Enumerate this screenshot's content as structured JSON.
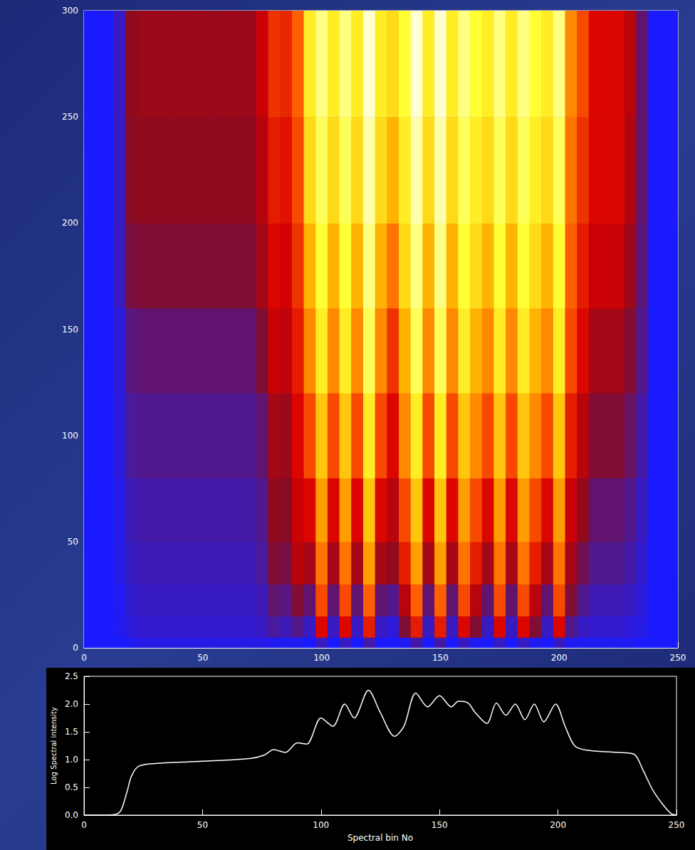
{
  "chart_data": [
    {
      "type": "heatmap",
      "xlim": [
        0,
        250
      ],
      "xticks": [
        0,
        50,
        100,
        150,
        200,
        250
      ],
      "ylim": [
        0,
        300
      ],
      "yticks": [
        0,
        50,
        100,
        150,
        200,
        250,
        300
      ],
      "x_edges": [
        0,
        2.5,
        7.5,
        12.5,
        17.5,
        22.5,
        27.5,
        32.5,
        37.5,
        42.5,
        47.5,
        52.5,
        57.5,
        62.5,
        67.5,
        72.5,
        77.5,
        82.5,
        87.5,
        92.5,
        97.5,
        102.5,
        107.5,
        112.5,
        117.5,
        122.5,
        127.5,
        132.5,
        137.5,
        142.5,
        147.5,
        152.5,
        157.5,
        162.5,
        167.5,
        172.5,
        177.5,
        182.5,
        187.5,
        192.5,
        197.5,
        202.5,
        207.5,
        212.5,
        217.5,
        222.5,
        227.5,
        232.5,
        237.5,
        242.5,
        247.5,
        250
      ],
      "y_edges": [
        0,
        5,
        15,
        30,
        50,
        80,
        120,
        160,
        200,
        250,
        300
      ],
      "cells": [
        [
          0.05,
          0.05,
          0.05,
          0.05,
          0.05,
          0.05,
          0.05,
          0.05,
          0.05,
          0.05
        ],
        [
          0.05,
          0.05,
          0.05,
          0.05,
          0.05,
          0.05,
          0.05,
          0.05,
          0.05,
          0.05
        ],
        [
          0.05,
          0.05,
          0.05,
          0.05,
          0.05,
          0.05,
          0.05,
          0.05,
          0.05,
          0.05
        ],
        [
          0.05,
          0.1,
          0.1,
          0.15,
          0.15,
          0.2,
          0.2,
          0.3,
          0.3,
          0.3
        ],
        [
          0.1,
          0.2,
          0.25,
          0.3,
          0.35,
          0.45,
          0.55,
          0.75,
          0.85,
          0.9
        ],
        [
          0.15,
          0.25,
          0.3,
          0.35,
          0.4,
          0.5,
          0.6,
          0.8,
          0.9,
          0.95
        ],
        [
          0.15,
          0.25,
          0.3,
          0.35,
          0.4,
          0.5,
          0.6,
          0.8,
          0.9,
          0.95
        ],
        [
          0.15,
          0.25,
          0.3,
          0.35,
          0.4,
          0.5,
          0.6,
          0.8,
          0.9,
          0.95
        ],
        [
          0.15,
          0.25,
          0.3,
          0.35,
          0.4,
          0.5,
          0.6,
          0.8,
          0.9,
          0.95
        ],
        [
          0.15,
          0.25,
          0.3,
          0.35,
          0.4,
          0.5,
          0.6,
          0.8,
          0.9,
          0.95
        ],
        [
          0.15,
          0.25,
          0.3,
          0.35,
          0.4,
          0.5,
          0.6,
          0.8,
          0.9,
          0.95
        ],
        [
          0.15,
          0.25,
          0.3,
          0.35,
          0.4,
          0.5,
          0.6,
          0.8,
          0.9,
          0.95
        ],
        [
          0.15,
          0.25,
          0.3,
          0.35,
          0.4,
          0.5,
          0.6,
          0.8,
          0.9,
          0.95
        ],
        [
          0.15,
          0.25,
          0.3,
          0.35,
          0.4,
          0.5,
          0.6,
          0.8,
          0.9,
          0.95
        ],
        [
          0.15,
          0.25,
          0.3,
          0.35,
          0.4,
          0.5,
          0.6,
          0.8,
          0.9,
          0.95
        ],
        [
          0.15,
          0.3,
          0.35,
          0.45,
          0.5,
          0.6,
          0.8,
          1.0,
          1.1,
          1.2
        ],
        [
          0.1,
          0.45,
          0.6,
          0.8,
          0.9,
          1.0,
          1.2,
          1.3,
          1.4,
          1.5
        ],
        [
          0.1,
          0.35,
          0.55,
          0.75,
          0.85,
          0.95,
          1.15,
          1.25,
          1.35,
          1.45
        ],
        [
          0.1,
          0.5,
          0.8,
          1.1,
          1.2,
          1.3,
          1.4,
          1.5,
          1.6,
          1.7
        ],
        [
          0.05,
          0.3,
          0.6,
          1.0,
          1.3,
          1.6,
          1.9,
          2.1,
          2.3,
          2.4
        ],
        [
          0.3,
          1.3,
          1.6,
          1.8,
          2.0,
          2.2,
          2.4,
          2.5,
          2.6,
          2.7
        ],
        [
          0.05,
          0.3,
          0.6,
          1.0,
          1.3,
          1.6,
          1.9,
          2.1,
          2.3,
          2.4
        ],
        [
          0.3,
          1.3,
          1.6,
          1.8,
          2.0,
          2.2,
          2.4,
          2.5,
          2.6,
          2.7
        ],
        [
          0.05,
          0.3,
          0.6,
          1.0,
          1.3,
          1.6,
          1.9,
          2.1,
          2.3,
          2.4
        ],
        [
          0.4,
          1.4,
          1.7,
          2.0,
          2.2,
          2.4,
          2.6,
          2.7,
          2.8,
          2.9
        ],
        [
          0.05,
          0.3,
          0.6,
          1.0,
          1.3,
          1.6,
          1.9,
          2.1,
          2.3,
          2.4
        ],
        [
          0.05,
          0.2,
          0.5,
          0.9,
          1.1,
          1.3,
          1.5,
          1.8,
          2.1,
          2.3
        ],
        [
          0.1,
          0.8,
          1.1,
          1.4,
          1.6,
          1.9,
          2.1,
          2.3,
          2.4,
          2.5
        ],
        [
          0.4,
          1.4,
          1.7,
          2.0,
          2.2,
          2.4,
          2.6,
          2.7,
          2.8,
          2.9
        ],
        [
          0.05,
          0.3,
          0.6,
          1.0,
          1.3,
          1.6,
          1.9,
          2.1,
          2.3,
          2.4
        ],
        [
          0.4,
          1.4,
          1.7,
          2.0,
          2.2,
          2.4,
          2.6,
          2.7,
          2.8,
          2.9
        ],
        [
          0.05,
          0.3,
          0.6,
          1.0,
          1.3,
          1.6,
          1.9,
          2.1,
          2.3,
          2.4
        ],
        [
          0.3,
          1.3,
          1.6,
          1.8,
          2.0,
          2.2,
          2.4,
          2.5,
          2.6,
          2.7
        ],
        [
          0.1,
          0.8,
          1.1,
          1.4,
          1.6,
          1.9,
          2.1,
          2.3,
          2.4,
          2.5
        ],
        [
          0.05,
          0.3,
          0.6,
          1.0,
          1.3,
          1.6,
          1.9,
          2.1,
          2.3,
          2.4
        ],
        [
          0.3,
          1.3,
          1.6,
          1.8,
          2.0,
          2.2,
          2.4,
          2.5,
          2.6,
          2.7
        ],
        [
          0.05,
          0.3,
          0.6,
          1.0,
          1.3,
          1.6,
          1.9,
          2.1,
          2.3,
          2.4
        ],
        [
          0.3,
          1.3,
          1.6,
          1.8,
          2.0,
          2.2,
          2.4,
          2.5,
          2.6,
          2.7
        ],
        [
          0.1,
          0.8,
          1.1,
          1.4,
          1.6,
          1.9,
          2.1,
          2.3,
          2.4,
          2.5
        ],
        [
          0.05,
          0.3,
          0.6,
          1.0,
          1.3,
          1.6,
          1.9,
          2.1,
          2.3,
          2.4
        ],
        [
          0.3,
          1.3,
          1.6,
          1.8,
          2.0,
          2.2,
          2.4,
          2.5,
          2.6,
          2.7
        ],
        [
          0.1,
          0.5,
          0.8,
          1.0,
          1.2,
          1.4,
          1.6,
          1.7,
          1.8,
          1.9
        ],
        [
          0.1,
          0.3,
          0.5,
          0.7,
          0.9,
          1.1,
          1.3,
          1.4,
          1.5,
          1.6
        ],
        [
          0.1,
          0.25,
          0.35,
          0.5,
          0.6,
          0.8,
          1.0,
          1.2,
          1.3,
          1.3
        ],
        [
          0.1,
          0.25,
          0.35,
          0.5,
          0.6,
          0.8,
          1.0,
          1.2,
          1.3,
          1.3
        ],
        [
          0.1,
          0.25,
          0.35,
          0.5,
          0.6,
          0.8,
          1.0,
          1.2,
          1.3,
          1.3
        ],
        [
          0.1,
          0.2,
          0.3,
          0.4,
          0.5,
          0.65,
          0.8,
          0.95,
          1.05,
          1.1
        ],
        [
          0.05,
          0.15,
          0.2,
          0.25,
          0.3,
          0.4,
          0.5,
          0.55,
          0.6,
          0.6
        ],
        [
          0.05,
          0.05,
          0.05,
          0.05,
          0.05,
          0.05,
          0.05,
          0.05,
          0.05,
          0.05
        ],
        [
          0.05,
          0.05,
          0.05,
          0.05,
          0.05,
          0.05,
          0.05,
          0.05,
          0.05,
          0.05
        ],
        [
          0.05,
          0.05,
          0.05,
          0.05,
          0.05,
          0.05,
          0.05,
          0.05,
          0.05,
          0.05
        ]
      ]
    },
    {
      "type": "line",
      "x_label": "Spectral bin No",
      "y_label": "Log Spectral intensity",
      "color": "#ffffff",
      "xlim": [
        0,
        250
      ],
      "xticks": [
        0,
        50,
        100,
        150,
        200,
        250
      ],
      "ylim": [
        0,
        2.5
      ],
      "yticks": [
        {
          "value": 0,
          "label": "0.0"
        },
        {
          "value": 0.5,
          "label": "0.5"
        },
        {
          "value": 1,
          "label": "1.0"
        },
        {
          "value": 1.5,
          "label": "1.5"
        },
        {
          "value": 2,
          "label": "2.0"
        },
        {
          "value": 2.5,
          "label": "2.5"
        }
      ],
      "x": [
        0,
        10,
        15,
        18,
        20,
        23,
        30,
        50,
        70,
        76,
        80,
        85,
        90,
        94,
        100,
        105,
        110,
        114,
        120,
        125,
        131,
        135,
        140,
        145,
        150,
        155,
        158,
        162,
        165,
        170,
        174,
        178,
        182,
        186,
        190,
        194,
        199,
        203,
        207,
        212,
        225,
        232,
        236,
        240,
        245,
        248,
        250
      ],
      "values": [
        0,
        0,
        0.05,
        0.4,
        0.7,
        0.88,
        0.93,
        0.97,
        1.02,
        1.08,
        1.18,
        1.13,
        1.3,
        1.28,
        1.75,
        1.6,
        2.0,
        1.75,
        2.25,
        1.85,
        1.42,
        1.6,
        2.2,
        1.95,
        2.15,
        1.95,
        2.05,
        2.02,
        1.85,
        1.65,
        2.02,
        1.8,
        2.0,
        1.72,
        2.0,
        1.68,
        2.0,
        1.6,
        1.25,
        1.17,
        1.13,
        1.1,
        0.8,
        0.45,
        0.15,
        0.02,
        0
      ]
    }
  ]
}
